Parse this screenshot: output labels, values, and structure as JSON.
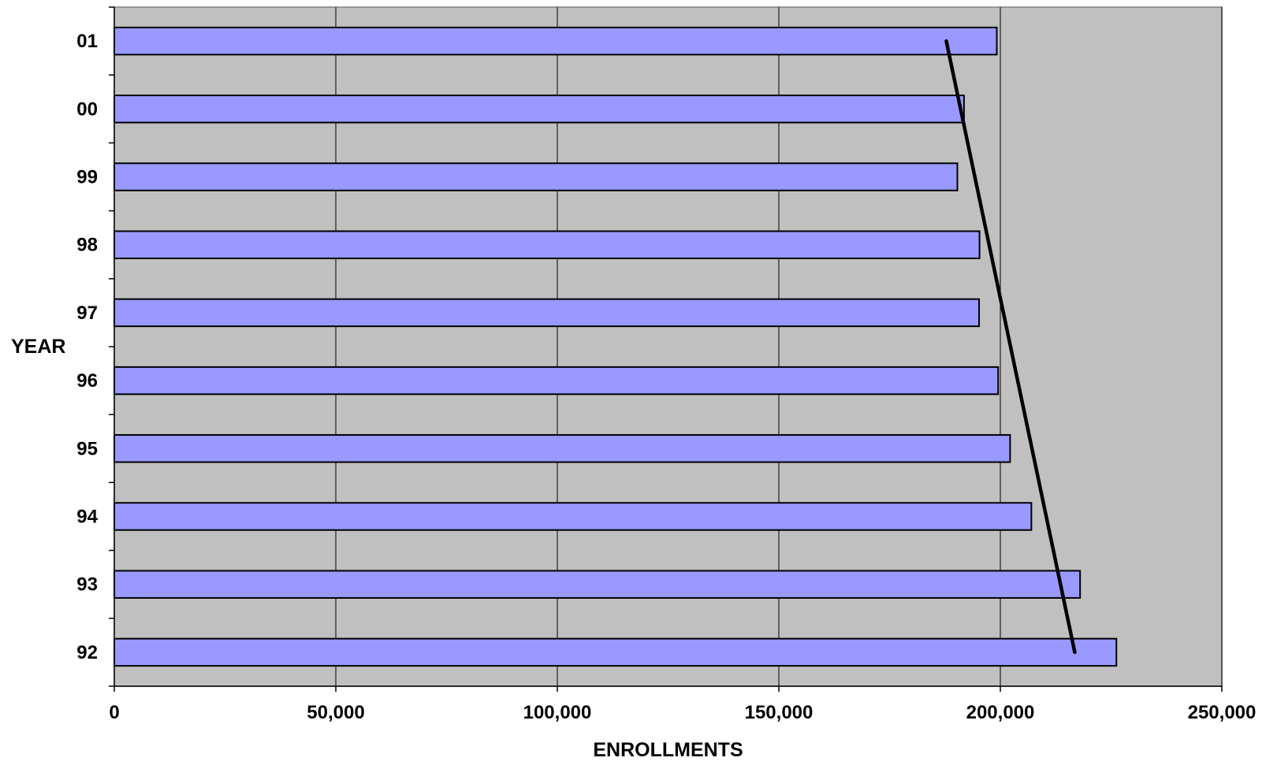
{
  "chart_data": {
    "type": "bar",
    "orientation": "horizontal",
    "categories": [
      "01",
      "00",
      "99",
      "98",
      "97",
      "96",
      "95",
      "94",
      "93",
      "92"
    ],
    "values": [
      199200,
      191800,
      190300,
      195300,
      195200,
      199500,
      202200,
      207000,
      218000,
      226200
    ],
    "xlabel": "ENROLLMENTS",
    "ylabel": "YEAR",
    "xlim": [
      0,
      250000
    ],
    "xticks": [
      0,
      50000,
      100000,
      150000,
      200000,
      250000
    ],
    "xtick_labels": [
      "0",
      "50,000",
      "100,000",
      "150,000",
      "200,000",
      "250,000"
    ],
    "grid": "vertical",
    "legend": "none",
    "trendline": {
      "from": {
        "category": "01",
        "value": 187800
      },
      "to": {
        "category": "92",
        "value": 216800
      }
    },
    "colors": {
      "bar_fill": "#9999ff",
      "bar_stroke": "#000000",
      "plot_background": "#c0c0c0",
      "grid": "#000000",
      "trendline": "#000000"
    }
  }
}
